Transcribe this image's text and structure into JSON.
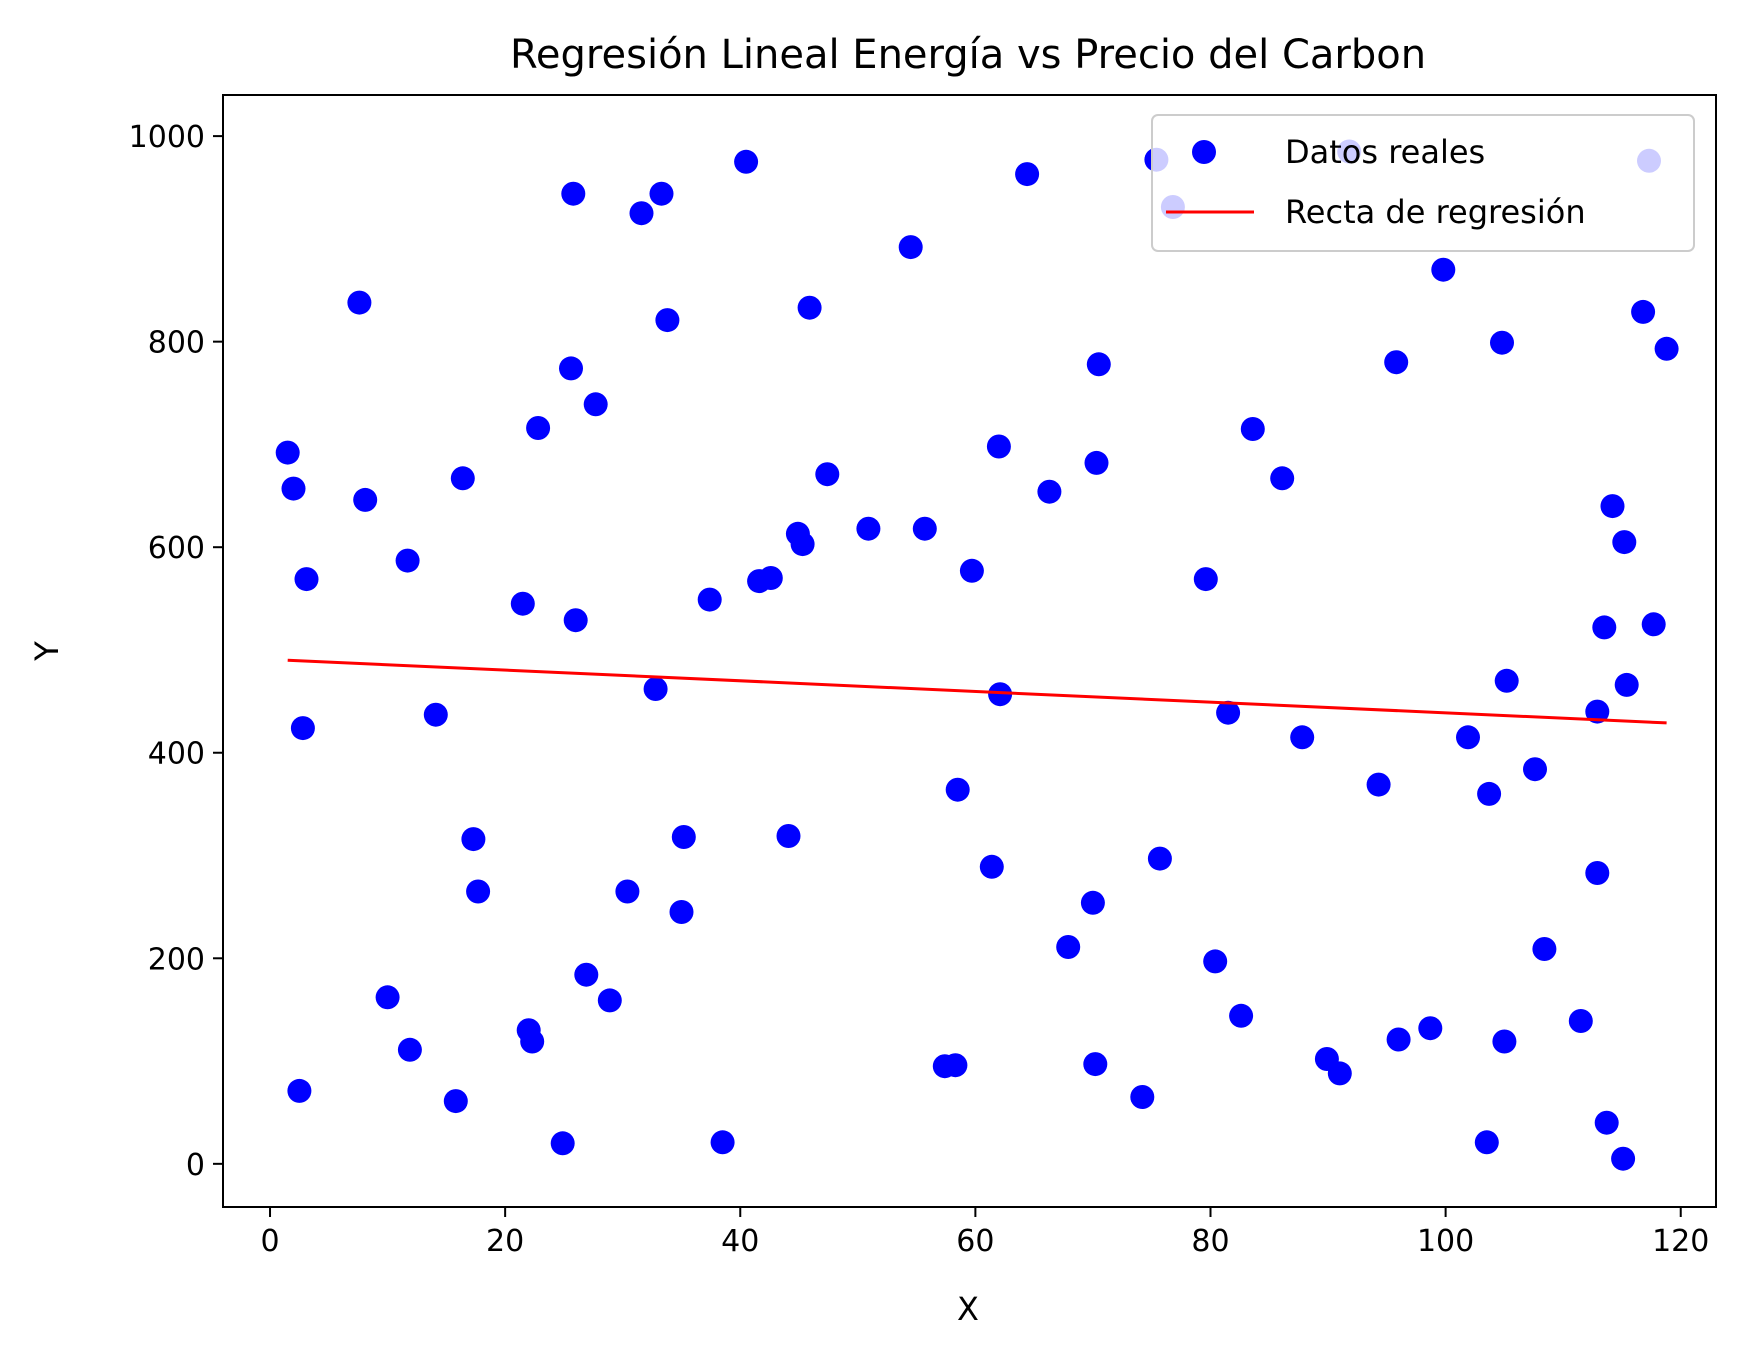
{
  "chart_data": {
    "type": "scatter",
    "title": "Regresión Lineal Energía vs Precio del Carbon",
    "xlabel": "X",
    "ylabel": "Y",
    "xlim": [
      -4,
      123
    ],
    "ylim": [
      -42,
      1040
    ],
    "xticks": [
      0,
      20,
      40,
      60,
      80,
      100,
      120
    ],
    "yticks": [
      0,
      200,
      400,
      600,
      800,
      1000
    ],
    "grid": false,
    "legend_position": "upper right",
    "colors": {
      "points": "#0000ff",
      "line": "#ff0000"
    },
    "series": [
      {
        "name": "Datos reales",
        "kind": "scatter",
        "x": [
          1.5,
          2.0,
          2.5,
          2.8,
          3.1,
          7.6,
          8.1,
          10.0,
          11.7,
          11.9,
          14.1,
          15.8,
          16.4,
          17.3,
          17.7,
          21.5,
          22.0,
          22.3,
          22.8,
          24.9,
          25.6,
          25.8,
          26.0,
          26.9,
          27.7,
          28.9,
          30.4,
          31.6,
          32.8,
          33.3,
          33.8,
          35.0,
          35.2,
          37.4,
          38.5,
          40.5,
          41.6,
          42.6,
          44.1,
          44.9,
          45.3,
          45.9,
          47.4,
          50.9,
          54.5,
          55.7,
          57.4,
          58.3,
          58.5,
          59.7,
          61.4,
          62.0,
          62.1,
          64.4,
          66.3,
          67.9,
          70.0,
          70.2,
          70.3,
          70.5,
          74.2,
          75.4,
          75.7,
          76.8,
          79.6,
          80.4,
          81.5,
          82.6,
          83.6,
          86.1,
          87.8,
          89.9,
          91.0,
          91.8,
          94.3,
          95.8,
          96.0,
          98.7,
          99.8,
          101.9,
          103.5,
          103.7,
          104.8,
          105.0,
          105.2,
          107.6,
          108.4,
          111.5,
          112.9,
          112.9,
          113.5,
          113.7,
          114.2,
          115.1,
          115.2,
          115.4,
          116.8,
          117.3,
          117.7,
          118.8
        ],
        "y": [
          692,
          657,
          71,
          424,
          569,
          838,
          646,
          162,
          587,
          111,
          437,
          61,
          667,
          316,
          265,
          545,
          130,
          119,
          716,
          20,
          774,
          944,
          529,
          184,
          739,
          159,
          265,
          925,
          462,
          944,
          821,
          245,
          318,
          549,
          21,
          975,
          567,
          570,
          319,
          613,
          603,
          833,
          671,
          618,
          892,
          618,
          95,
          96,
          364,
          577,
          289,
          698,
          457,
          963,
          654,
          211,
          254,
          97,
          682,
          778,
          65,
          977,
          297,
          931,
          569,
          197,
          439,
          144,
          715,
          667,
          415,
          102,
          88,
          985,
          369,
          780,
          121,
          132,
          870,
          415,
          21,
          360,
          799,
          119,
          470,
          384,
          209,
          139,
          440,
          283,
          522,
          40,
          640,
          5,
          605,
          466,
          829,
          976,
          525,
          793
        ]
      },
      {
        "name": "Recta de regresión",
        "kind": "line",
        "x": [
          1.5,
          118.8
        ],
        "y": [
          490,
          429
        ]
      }
    ]
  }
}
